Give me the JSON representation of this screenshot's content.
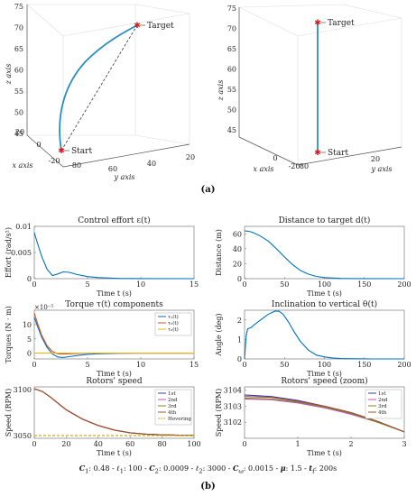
{
  "caption_a": "(a)",
  "caption_b": "(b)",
  "params": {
    "c1_label": "C",
    "c1_sub": "1",
    "c1_val": ": 0.48 - ",
    "l1_label": "ℓ",
    "l1_sub": "1",
    "l1_val": ": 100 - ",
    "c2_label": "C",
    "c2_sub": "2",
    "c2_val": ": 0.0009 - ",
    "l2_label": "ℓ",
    "l2_sub": "2",
    "l2_val": ": 3000 - ",
    "cw_label": "C",
    "cw_sub": "ω",
    "cw_val": ": 0.0015 - ",
    "mu_label": "μ",
    "mu_val": ": 1.5 - ",
    "tf_label": "t",
    "tf_sub": "f",
    "tf_val": ": 200s"
  },
  "chart_data": [
    {
      "type": "line3d",
      "id": "traj-persp",
      "xlabel": "x axis",
      "ylabel": "y axis",
      "zlabel": "z axis",
      "z_ticks": [
        "75",
        "70",
        "65",
        "60",
        "55",
        "50",
        "45"
      ],
      "x_ticks": [
        "20",
        "0",
        "-20"
      ],
      "y_ticks": [
        "20",
        "40",
        "60",
        "80"
      ],
      "annotations": [
        "Target",
        "Start"
      ]
    },
    {
      "type": "line3d",
      "id": "traj-front",
      "xlabel": "x axis",
      "ylabel": "y axis",
      "zlabel": "z axis",
      "z_ticks": [
        "75",
        "70",
        "65",
        "60",
        "55",
        "50",
        "45"
      ],
      "x_ticks": [
        "0",
        "-20"
      ],
      "y_ticks": [
        "80",
        "20"
      ],
      "annotations": [
        "Target",
        "Start"
      ]
    },
    {
      "type": "line",
      "id": "effort",
      "title": "Control effort ε(t)",
      "xlabel": "Time t (s)",
      "ylabel": "Effort (rad/s²)",
      "xlim": [
        0,
        15
      ],
      "ylim": [
        0,
        0.01
      ],
      "xticks": [
        "0",
        "5",
        "10",
        "15"
      ],
      "yticks": [
        "0",
        "0.005",
        "0.01"
      ],
      "series": [
        {
          "color": "#0072bd",
          "x": [
            0,
            0.3,
            0.7,
            1.2,
            1.7,
            2.2,
            2.7,
            3.3,
            4,
            5,
            6,
            8,
            10,
            15
          ],
          "y": [
            0.0088,
            0.0068,
            0.0042,
            0.0018,
            0.0006,
            0.0009,
            0.0013,
            0.0012,
            0.0008,
            0.0004,
            0.0002,
            5e-05,
            2e-05,
            0
          ]
        }
      ]
    },
    {
      "type": "line",
      "id": "distance",
      "title": "Distance to target d(t)",
      "xlabel": "Time t (s)",
      "ylabel": "Distance (m)",
      "xlim": [
        0,
        200
      ],
      "ylim": [
        0,
        70
      ],
      "xticks": [
        "0",
        "50",
        "100",
        "150",
        "200"
      ],
      "yticks": [
        "0",
        "20",
        "40",
        "60"
      ],
      "series": [
        {
          "color": "#0072bd",
          "x": [
            0,
            5,
            10,
            20,
            30,
            40,
            50,
            60,
            70,
            80,
            90,
            100,
            120,
            140,
            200
          ],
          "y": [
            64,
            63.5,
            62,
            57,
            50,
            40,
            29,
            19,
            11,
            6,
            3,
            1.5,
            0.4,
            0.1,
            0
          ]
        }
      ]
    },
    {
      "type": "line",
      "id": "torque",
      "title": "Torque τ(t) components",
      "xlabel": "Time t (s)",
      "ylabel": "Torques (N · m)",
      "multiplier": "×10⁻⁵",
      "xlim": [
        0,
        15
      ],
      "ylim": [
        -2,
        15
      ],
      "xticks": [
        "0",
        "5",
        "10",
        "15"
      ],
      "yticks": [
        "0",
        "5",
        "10"
      ],
      "legend": [
        "τ₁(t)",
        "τ₂(t)",
        "τ₃(t)"
      ],
      "legend_pos": "top-right",
      "series": [
        {
          "name": "τ₁(t)",
          "color": "#0072bd",
          "x": [
            0,
            0.3,
            0.7,
            1.2,
            1.7,
            2.2,
            2.7,
            3.3,
            4,
            5,
            6,
            8,
            10,
            15
          ],
          "y": [
            12.5,
            9.5,
            5.5,
            2.0,
            -0.3,
            -1.3,
            -1.5,
            -1.2,
            -0.8,
            -0.4,
            -0.2,
            -0.05,
            0,
            0
          ]
        },
        {
          "name": "τ₂(t)",
          "color": "#d95319",
          "x": [
            0,
            0.3,
            0.7,
            1.2,
            1.7,
            2.2,
            2.7,
            3.3,
            4,
            5,
            6,
            8,
            10,
            15
          ],
          "y": [
            14.0,
            10.5,
            6.2,
            2.6,
            0.6,
            -0.2,
            -0.3,
            -0.2,
            -0.1,
            0,
            0,
            0,
            0,
            0
          ]
        },
        {
          "name": "τ₃(t)",
          "color": "#edb120",
          "x": [
            0,
            15
          ],
          "y": [
            0,
            0
          ]
        }
      ]
    },
    {
      "type": "line",
      "id": "inclination",
      "title": "Inclination to vertical θ(t)",
      "xlabel": "Time t (s)",
      "ylabel": "Angle (deg)",
      "xlim": [
        0,
        200
      ],
      "ylim": [
        0,
        2.5
      ],
      "xticks": [
        "0",
        "50",
        "100",
        "150",
        "200"
      ],
      "yticks": [
        "0",
        "1",
        "2"
      ],
      "series": [
        {
          "color": "#0072bd",
          "x": [
            0,
            2,
            4,
            6,
            8,
            12,
            20,
            30,
            38,
            43,
            48,
            55,
            62,
            70,
            80,
            90,
            100,
            110,
            120,
            140,
            160,
            200
          ],
          "y": [
            0,
            1.2,
            1.55,
            1.58,
            1.6,
            1.75,
            2.0,
            2.3,
            2.45,
            2.45,
            2.3,
            1.9,
            1.4,
            0.9,
            0.45,
            0.2,
            0.1,
            0.05,
            0.02,
            0.01,
            0,
            0
          ]
        }
      ]
    },
    {
      "type": "line",
      "id": "rotors",
      "title": "Rotors' speed",
      "xlabel": "Time t (s)",
      "ylabel": "Speed (RPM)",
      "xlim": [
        0,
        100
      ],
      "ylim": [
        3047,
        3103
      ],
      "xticks": [
        "0",
        "20",
        "40",
        "60",
        "80",
        "100"
      ],
      "yticks": [
        "3050",
        "3100"
      ],
      "legend": [
        "1st",
        "2nd",
        "3rd",
        "4th",
        "Hovering"
      ],
      "legend_pos": "top-right",
      "series": [
        {
          "name": "1st",
          "color": "#3a36b8",
          "x": [
            0,
            5,
            10,
            15,
            20,
            30,
            40,
            50,
            60,
            70,
            80,
            90,
            100
          ],
          "y": [
            3101,
            3098,
            3092,
            3085,
            3078,
            3068,
            3061,
            3056,
            3053,
            3051.5,
            3050.7,
            3050.3,
            3050.1
          ]
        },
        {
          "name": "2nd",
          "color": "#cc4cc2",
          "x": [
            0,
            5,
            10,
            15,
            20,
            30,
            40,
            50,
            60,
            70,
            80,
            90,
            100
          ],
          "y": [
            3101,
            3098,
            3092,
            3085,
            3078,
            3068,
            3061,
            3056,
            3053,
            3051.5,
            3050.7,
            3050.3,
            3050.1
          ]
        },
        {
          "name": "3rd",
          "color": "#7a8a2a",
          "x": [
            0,
            5,
            10,
            15,
            20,
            30,
            40,
            50,
            60,
            70,
            80,
            90,
            100
          ],
          "y": [
            3101,
            3098,
            3092,
            3085,
            3078,
            3068,
            3061,
            3056,
            3053,
            3051.5,
            3050.7,
            3050.3,
            3050.1
          ]
        },
        {
          "name": "4th",
          "color": "#a0522d",
          "x": [
            0,
            5,
            10,
            15,
            20,
            30,
            40,
            50,
            60,
            70,
            80,
            90,
            100
          ],
          "y": [
            3101,
            3098,
            3092,
            3085,
            3078,
            3068,
            3061,
            3056,
            3053,
            3051.5,
            3050.7,
            3050.3,
            3050.1
          ]
        },
        {
          "name": "Hovering",
          "color": "#d4a000",
          "dash": true,
          "x": [
            0,
            100
          ],
          "y": [
            3050,
            3050
          ]
        }
      ]
    },
    {
      "type": "line",
      "id": "rotors-zoom",
      "title": "Rotors' speed (zoom)",
      "xlabel": "Time t (s)",
      "ylabel": "Speed (RPM)",
      "xlim": [
        0,
        3
      ],
      "ylim": [
        3101,
        3104.2
      ],
      "xticks": [
        "0",
        "1",
        "2",
        "3"
      ],
      "yticks": [
        "3102",
        "3103",
        "3104"
      ],
      "legend": [
        "1st",
        "2nd",
        "3rd",
        "4th"
      ],
      "legend_pos": "top-right",
      "series": [
        {
          "name": "1st",
          "color": "#3a36b8",
          "x": [
            0,
            0.5,
            1,
            1.5,
            2,
            2.5,
            3
          ],
          "y": [
            3103.7,
            3103.6,
            3103.35,
            3103.0,
            3102.6,
            3102.05,
            3101.4
          ]
        },
        {
          "name": "2nd",
          "color": "#cc4cc2",
          "x": [
            0,
            0.5,
            1,
            1.5,
            2,
            2.5,
            3
          ],
          "y": [
            3103.45,
            3103.4,
            3103.2,
            3102.9,
            3102.5,
            3102.0,
            3101.4
          ]
        },
        {
          "name": "3rd",
          "color": "#7a8a2a",
          "x": [
            0,
            0.5,
            1,
            1.5,
            2,
            2.5,
            3
          ],
          "y": [
            3103.5,
            3103.45,
            3103.25,
            3102.95,
            3102.55,
            3102.0,
            3101.4
          ]
        },
        {
          "name": "4th",
          "color": "#a0522d",
          "x": [
            0,
            0.5,
            1,
            1.5,
            2,
            2.5,
            3
          ],
          "y": [
            3103.6,
            3103.55,
            3103.3,
            3103.0,
            3102.6,
            3102.05,
            3101.4
          ]
        }
      ]
    }
  ]
}
